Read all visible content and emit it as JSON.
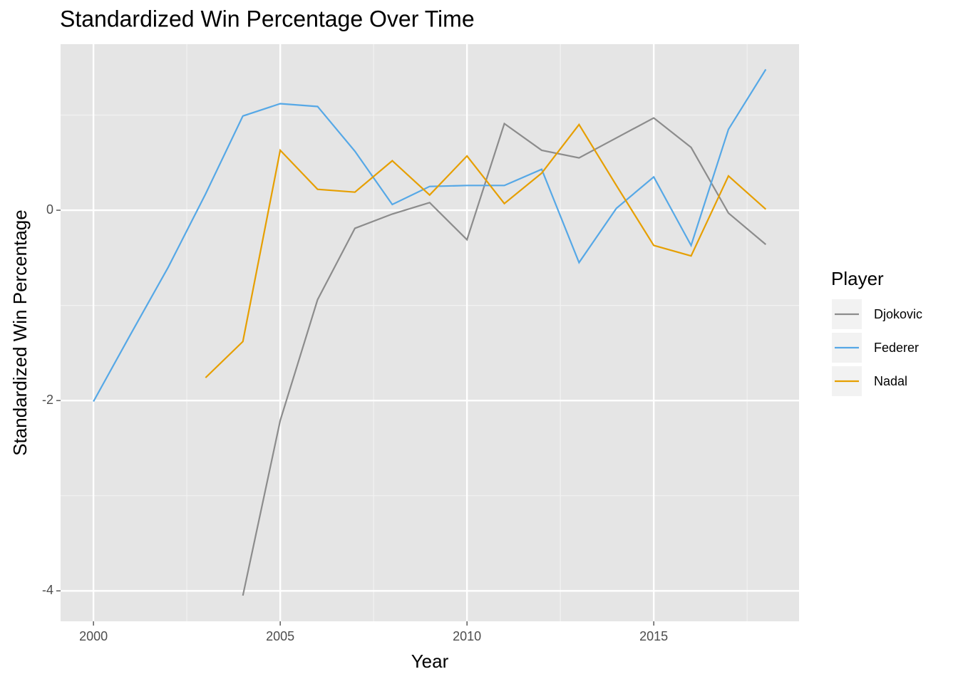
{
  "chart_data": {
    "type": "line",
    "title": "Standardized Win Percentage Over Time",
    "x_label": "Year",
    "y_label": "Standardized Win Percentage",
    "legend_title": "Player",
    "legend_position": "right",
    "grid": true,
    "x": [
      2000,
      2001,
      2002,
      2003,
      2004,
      2005,
      2006,
      2007,
      2008,
      2009,
      2010,
      2011,
      2012,
      2013,
      2014,
      2015,
      2016,
      2017,
      2018
    ],
    "series": [
      {
        "name": "Djokovic",
        "color": "#8c8c8c",
        "values": [
          null,
          null,
          null,
          null,
          -4.05,
          -2.21,
          -0.94,
          -0.19,
          -0.04,
          0.08,
          -0.31,
          0.91,
          0.63,
          0.55,
          0.76,
          0.97,
          0.66,
          -0.03,
          -0.36
        ]
      },
      {
        "name": "Federer",
        "color": "#56a8e6",
        "values": [
          -2.01,
          -1.3,
          -0.6,
          0.17,
          0.99,
          1.12,
          1.09,
          0.62,
          0.06,
          0.25,
          0.26,
          0.26,
          0.43,
          -0.55,
          0.02,
          0.35,
          -0.37,
          0.85,
          1.48
        ]
      },
      {
        "name": "Nadal",
        "color": "#e69f00",
        "values": [
          null,
          null,
          null,
          -1.76,
          -1.38,
          0.63,
          0.22,
          0.19,
          0.52,
          0.16,
          0.57,
          0.07,
          0.39,
          0.9,
          0.26,
          -0.37,
          -0.48,
          0.36,
          0.01
        ]
      }
    ],
    "xlim": [
      1999.12,
      2018.89
    ],
    "xticks": [
      2000,
      2005,
      2010,
      2015
    ],
    "ylim": [
      -4.32,
      1.745
    ],
    "yticks": [
      -4,
      -2,
      0
    ]
  }
}
